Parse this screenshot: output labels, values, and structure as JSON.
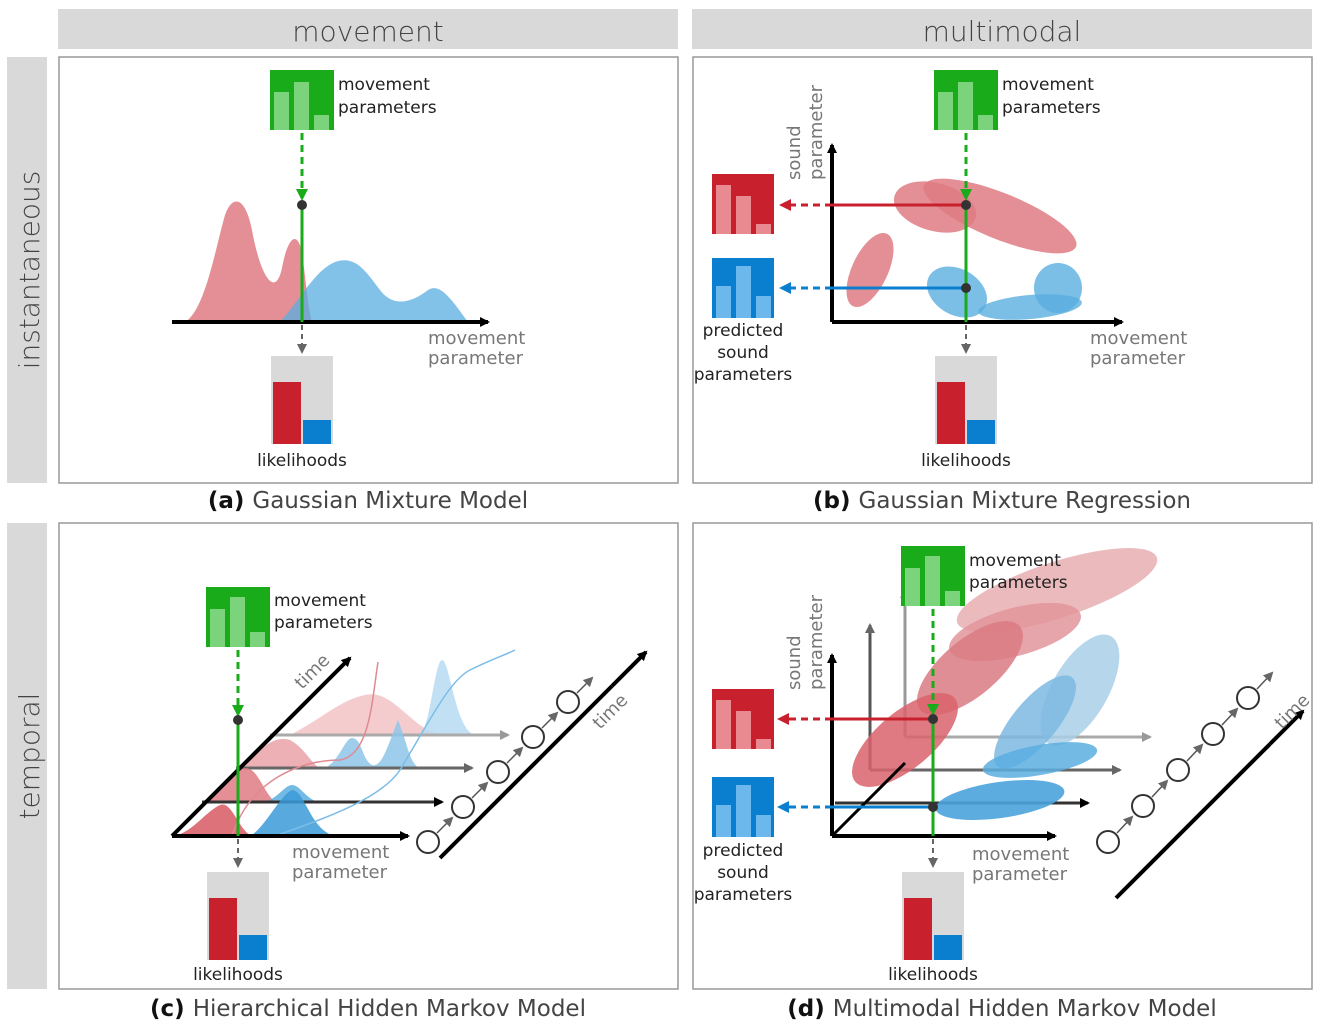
{
  "headers": {
    "col1": "movement",
    "col2": "multimodal",
    "row1": "instantaneous",
    "row2": "temporal"
  },
  "captions": [
    {
      "letter": "(a)",
      "title": "Gaussian Mixture Model"
    },
    {
      "letter": "(b)",
      "title": "Gaussian Mixture Regression"
    },
    {
      "letter": "(c)",
      "title": "Hierarchical Hidden Markov Model"
    },
    {
      "letter": "(d)",
      "title": "Multimodal Hidden Markov Model"
    }
  ],
  "labels": {
    "movement_parameters": [
      "movement",
      "parameters"
    ],
    "likelihoods": "likelihoods",
    "predicted_sound_parameters": [
      "predicted",
      "sound",
      "parameters"
    ],
    "movement_parameter_axis": [
      "movement",
      "parameter"
    ],
    "sound_parameter_axis": [
      "sound",
      "parameter"
    ],
    "time": "time"
  },
  "colors": {
    "green": "#1aab1a",
    "red": "#c8202c",
    "blue": "#0a7fd0",
    "gray_bg": "#d9d9d9",
    "frame": "#999999"
  }
}
